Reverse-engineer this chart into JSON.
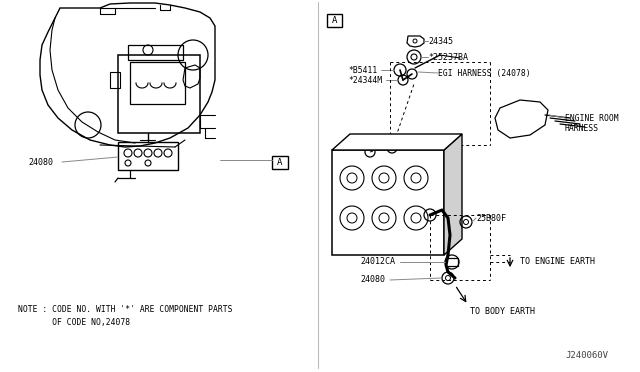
{
  "bg_color": "#ffffff",
  "line_color": "#000000",
  "gray_color": "#888888",
  "light_gray": "#d0d0d0",
  "note_line1": "NOTE : CODE NO. WITH '*' ARE COMPONENT PARTS",
  "note_line2": "       OF CODE NO,24078",
  "watermark": "J240060V"
}
